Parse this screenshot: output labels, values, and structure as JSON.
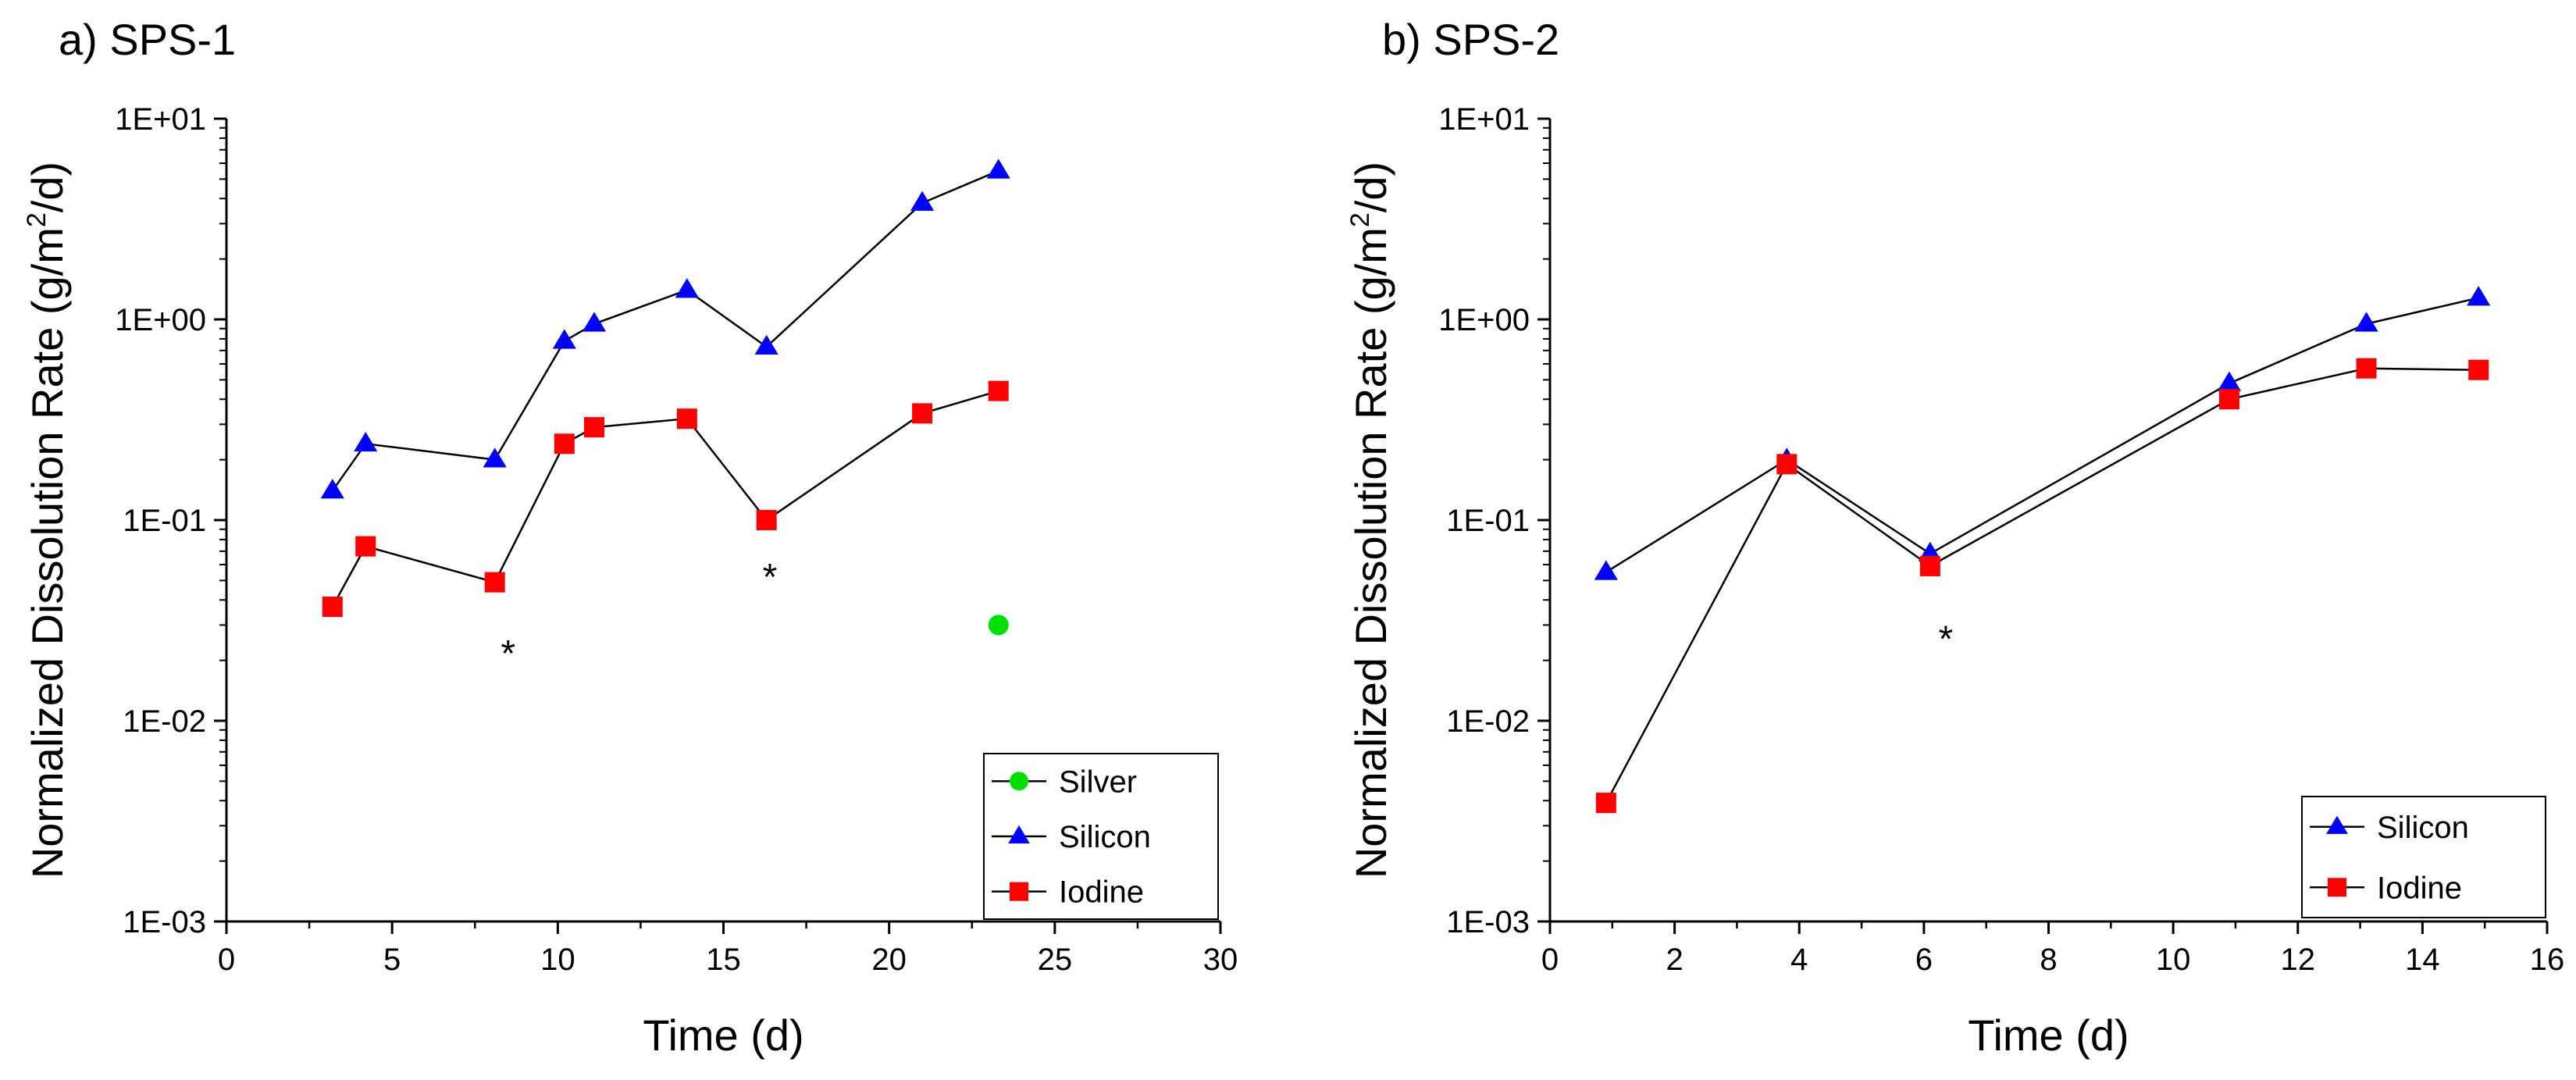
{
  "chart_data": [
    {
      "type": "scatter",
      "panel_title": "a) SPS-1",
      "xlabel": "Time (d)",
      "ylabel_prefix": "Normalized Dissolution Rate (g/m",
      "ylabel_sup": "2",
      "ylabel_suffix": "/d)",
      "xlim": [
        0,
        30
      ],
      "ylim": [
        0.001,
        10
      ],
      "yscale": "log",
      "x_ticks": [
        0,
        5,
        10,
        15,
        20,
        25,
        30
      ],
      "x_tick_labels": [
        "0",
        "5",
        "10",
        "15",
        "20",
        "25",
        "30"
      ],
      "y_ticks": [
        0.001,
        0.01,
        0.1,
        1,
        10
      ],
      "y_tick_labels": [
        "1E-03",
        "1E-02",
        "1E-01",
        "1E+00",
        "1E+01"
      ],
      "legend_position": "bottom-right",
      "series": [
        {
          "name": "Silver",
          "marker": "circle",
          "color": "#00e000",
          "line": true,
          "x": [
            23.3
          ],
          "y": [
            0.03
          ]
        },
        {
          "name": "Silicon",
          "marker": "triangle",
          "color": "#0000ff",
          "line": true,
          "x": [
            3.2,
            4.2,
            8.1,
            10.2,
            11.1,
            13.9,
            16.3,
            21.0,
            23.3
          ],
          "y": [
            0.14,
            0.24,
            0.2,
            0.78,
            0.95,
            1.4,
            0.73,
            3.8,
            5.5
          ]
        },
        {
          "name": "Iodine",
          "marker": "square",
          "color": "#ff0000",
          "line": true,
          "x": [
            3.2,
            4.2,
            8.1,
            10.2,
            11.1,
            13.9,
            16.3,
            21.0,
            23.3
          ],
          "y": [
            0.037,
            0.074,
            0.049,
            0.24,
            0.29,
            0.32,
            0.1,
            0.34,
            0.44
          ]
        }
      ],
      "annotations": [
        {
          "text": "*",
          "x": 8.5,
          "y": 0.022
        },
        {
          "text": "*",
          "x": 16.4,
          "y": 0.053
        }
      ]
    },
    {
      "type": "scatter",
      "panel_title": "b) SPS-2",
      "xlabel": "Time (d)",
      "ylabel_prefix": "Normalized Dissolution Rate (g/m",
      "ylabel_sup": "2",
      "ylabel_suffix": "/d)",
      "xlim": [
        0,
        16
      ],
      "ylim": [
        0.001,
        10
      ],
      "yscale": "log",
      "x_ticks": [
        0,
        2,
        4,
        6,
        8,
        10,
        12,
        14,
        16
      ],
      "x_tick_labels": [
        "0",
        "2",
        "4",
        "6",
        "8",
        "10",
        "12",
        "14",
        "16"
      ],
      "y_ticks": [
        0.001,
        0.01,
        0.1,
        1,
        10
      ],
      "y_tick_labels": [
        "1E-03",
        "1E-02",
        "1E-01",
        "1E+00",
        "1E+01"
      ],
      "legend_position": "bottom-right",
      "series": [
        {
          "name": "Silicon",
          "marker": "triangle",
          "color": "#0000ff",
          "line": true,
          "x": [
            0.9,
            3.8,
            6.1,
            10.9,
            13.1,
            14.9
          ],
          "y": [
            0.055,
            0.2,
            0.068,
            0.48,
            0.95,
            1.28
          ]
        },
        {
          "name": "Iodine",
          "marker": "square",
          "color": "#ff0000",
          "line": true,
          "x": [
            0.9,
            3.8,
            6.1,
            10.9,
            13.1,
            14.9
          ],
          "y": [
            0.0039,
            0.19,
            0.059,
            0.4,
            0.57,
            0.56
          ]
        }
      ],
      "annotations": [
        {
          "text": "*",
          "x": 6.35,
          "y": 0.026
        }
      ]
    }
  ]
}
